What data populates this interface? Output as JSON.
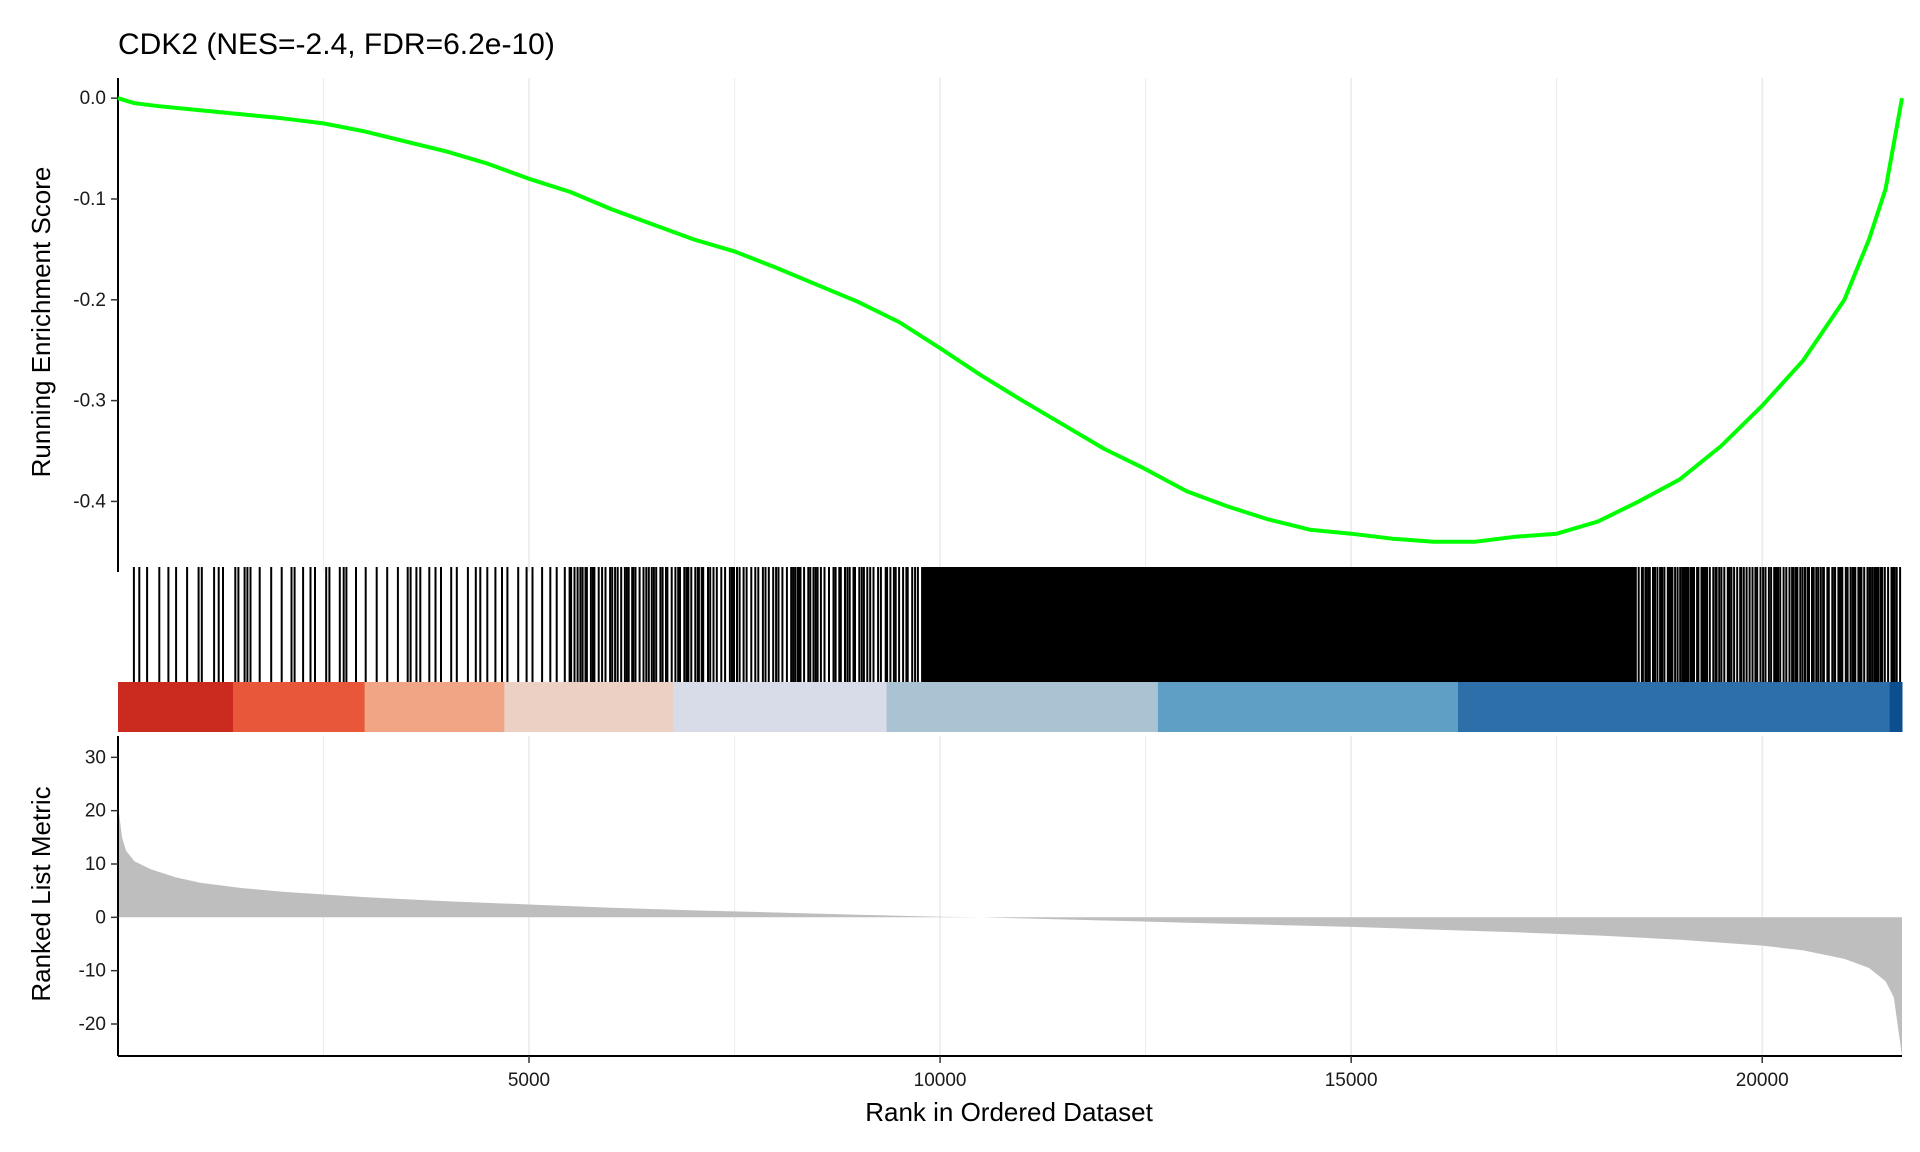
{
  "chart_data": {
    "type": "line",
    "title": "CDK2 (NES=-2.4, FDR=6.2e-10)",
    "xlabel": "Rank in Ordered Dataset",
    "xlim": [
      1,
      21700
    ],
    "xticks": [
      5000,
      10000,
      15000,
      20000
    ],
    "colors": {
      "es_line": "#00ff00",
      "hits": "#000000",
      "metric_fill": "#bebebe",
      "grid": "#ebebeb",
      "color_bar": [
        "#cb2a1e",
        "#e8573a",
        "#f0a585",
        "#ebd0c3",
        "#d8dbe8",
        "#a9c3d3",
        "#5f9fc6",
        "#2d70a9",
        "#0b4f8f"
      ]
    },
    "panels": [
      {
        "name": "enrichment",
        "ylabel": "Running Enrichment Score",
        "ylim": [
          -0.47,
          0.02
        ],
        "yticks": [
          0.0,
          -0.1,
          -0.2,
          -0.3,
          -0.4
        ],
        "ytick_labels": [
          "0.0",
          "-0.1",
          "-0.2",
          "-0.3",
          "-0.4"
        ],
        "series": [
          {
            "x": [
              1,
              200,
              500,
              1000,
              1500,
              2000,
              2500,
              3000,
              3500,
              4000,
              4500,
              5000,
              5500,
              6000,
              6500,
              7000,
              7500,
              8000,
              8500,
              9000,
              9500,
              10000,
              10500,
              11000,
              11500,
              12000,
              12500,
              13000,
              13500,
              14000,
              14500,
              15000,
              15500,
              16000,
              16500,
              17000,
              17500,
              18000,
              18500,
              19000,
              19500,
              20000,
              20500,
              21000,
              21300,
              21500,
              21700
            ],
            "y": [
              0.0,
              -0.005,
              -0.008,
              -0.012,
              -0.016,
              -0.02,
              -0.025,
              -0.033,
              -0.043,
              -0.053,
              -0.065,
              -0.08,
              -0.093,
              -0.11,
              -0.125,
              -0.14,
              -0.152,
              -0.168,
              -0.185,
              -0.202,
              -0.222,
              -0.248,
              -0.275,
              -0.3,
              -0.324,
              -0.348,
              -0.368,
              -0.39,
              -0.405,
              -0.418,
              -0.428,
              -0.432,
              -0.437,
              -0.44,
              -0.44,
              -0.435,
              -0.432,
              -0.42,
              -0.4,
              -0.378,
              -0.345,
              -0.305,
              -0.26,
              -0.2,
              -0.14,
              -0.09,
              0.0
            ]
          }
        ]
      },
      {
        "name": "ranked-metric",
        "ylabel": "Ranked List Metric",
        "ylim": [
          -26,
          34
        ],
        "yticks": [
          30,
          20,
          10,
          0,
          -10,
          -20
        ],
        "ytick_labels": [
          "30",
          "20",
          "10",
          "0",
          "-10",
          "-20"
        ],
        "series": [
          {
            "x": [
              1,
              50,
              100,
              200,
              400,
              700,
              1000,
              1500,
              2000,
              3000,
              4000,
              5000,
              6000,
              7000,
              8000,
              9000,
              10000,
              10500,
              11000,
              12000,
              13000,
              14000,
              15000,
              16000,
              17000,
              18000,
              19000,
              20000,
              20500,
              21000,
              21300,
              21500,
              21600,
              21700
            ],
            "y": [
              21,
              15,
              12.5,
              10.5,
              9,
              7.5,
              6.5,
              5.5,
              4.8,
              3.8,
              3,
              2.4,
              1.8,
              1.3,
              0.9,
              0.5,
              0.1,
              0,
              -0.2,
              -0.6,
              -1,
              -1.4,
              -1.8,
              -2.3,
              -2.8,
              -3.4,
              -4.2,
              -5.3,
              -6.2,
              -7.8,
              -9.5,
              -12,
              -15,
              -26
            ]
          }
        ]
      }
    ]
  }
}
